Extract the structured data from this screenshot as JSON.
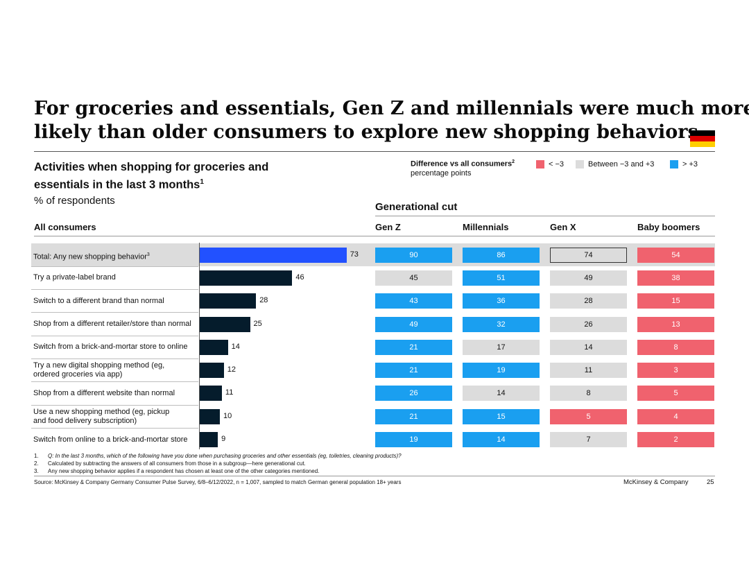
{
  "title": {
    "line1": "For groceries and essentials, Gen Z and millennials were much more",
    "line2": "likely than older consumers to explore new shopping behaviors"
  },
  "flag": {
    "name": "germany-flag",
    "colors": [
      "#000000",
      "#dd0000",
      "#ffce00"
    ]
  },
  "chart_title": {
    "line1": "Activities when shopping for groceries and",
    "line2": "essentials in the last 3 months",
    "sup": "1"
  },
  "units": "% of respondents",
  "legend": {
    "title": "Difference vs all consumers",
    "title_sup": "2",
    "subtitle": "percentage points",
    "items": [
      {
        "label": "< −3",
        "color": "#f0626e"
      },
      {
        "label": "Between −3 and +3",
        "color": "#dcdcdc"
      },
      {
        "label": "> +3",
        "color": "#1a9ff0"
      }
    ]
  },
  "generational_cut": "Generational cut",
  "colors": {
    "total_bar": "#2251ff",
    "bar": "#051c2c",
    "high": "#1a9ff0",
    "mid": "#dcdcdc",
    "low": "#f0626e"
  },
  "chart_data": {
    "type": "bar",
    "title": "Activities when shopping for groceries and essentials in the last 3 months",
    "ylabel": "% of respondents",
    "series_label": "All consumers",
    "categories": [
      "Total: Any new shopping behavior",
      "Try a private-label brand",
      "Switch to a different brand than normal",
      "Shop from a different retailer/store than normal",
      "Switch from a brick-and-mortar store to online",
      "Try a new digital shopping method (eg, ordered groceries via app)",
      "Shop from a different website than normal",
      "Use a new shopping method (eg, pickup and food delivery subscription)",
      "Switch from online to a brick-and-mortar store"
    ],
    "display_lines": [
      [
        "Total: Any new shopping behavior"
      ],
      [
        "Try a private-label brand"
      ],
      [
        "Switch to a different brand than normal"
      ],
      [
        "Shop from a different retailer/store than normal"
      ],
      [
        "Switch from a brick-and-mortar store to online"
      ],
      [
        "Try a new digital shopping method (eg,",
        "ordered groceries via app)"
      ],
      [
        "Shop from a different website than normal"
      ],
      [
        "Use a new shopping method (eg, pickup",
        "and food delivery subscription)"
      ],
      [
        "Switch from online to a brick-and-mortar store"
      ]
    ],
    "first_sup": "3",
    "values": [
      73,
      46,
      28,
      25,
      14,
      12,
      11,
      10,
      9
    ],
    "xlim": [
      0,
      100
    ],
    "table": {
      "columns": [
        "Gen Z",
        "Millennials",
        "Gen X",
        "Baby boomers"
      ],
      "rows": [
        [
          90,
          86,
          74,
          54
        ],
        [
          45,
          51,
          49,
          38
        ],
        [
          43,
          36,
          28,
          15
        ],
        [
          49,
          32,
          26,
          13
        ],
        [
          21,
          17,
          14,
          8
        ],
        [
          21,
          19,
          11,
          3
        ],
        [
          26,
          14,
          8,
          5
        ],
        [
          21,
          15,
          5,
          4
        ],
        [
          19,
          14,
          7,
          2
        ]
      ],
      "categories": [
        [
          "high",
          "high",
          "mid-outline",
          "low"
        ],
        [
          "mid",
          "high",
          "mid",
          "low"
        ],
        [
          "high",
          "high",
          "mid",
          "low"
        ],
        [
          "high",
          "high",
          "mid",
          "low"
        ],
        [
          "high",
          "mid",
          "mid",
          "low"
        ],
        [
          "high",
          "high",
          "mid",
          "low"
        ],
        [
          "high",
          "mid",
          "mid",
          "low"
        ],
        [
          "high",
          "high",
          "low",
          "low"
        ],
        [
          "high",
          "high",
          "mid",
          "low"
        ]
      ]
    }
  },
  "footnotes": [
    {
      "n": "1.",
      "text": "Q: In the last 3 months, which of the following have you done when purchasing groceries and other essentials (eg, toiletries, cleaning products)?"
    },
    {
      "n": "2.",
      "text": "Calculated by subtracting the answers of all consumers from those in a subgroup—here generational cut."
    },
    {
      "n": "3.",
      "text": "Any new shopping behavior applies if a respondent has chosen at least one of the other categories mentioned."
    }
  ],
  "source": "Source: McKinsey & Company Germany Consumer Pulse Survey, 6/8–6/12/2022, n = 1,007, sampled to match German general population 18+ years",
  "brand": "McKinsey & Company",
  "page_number": "25"
}
